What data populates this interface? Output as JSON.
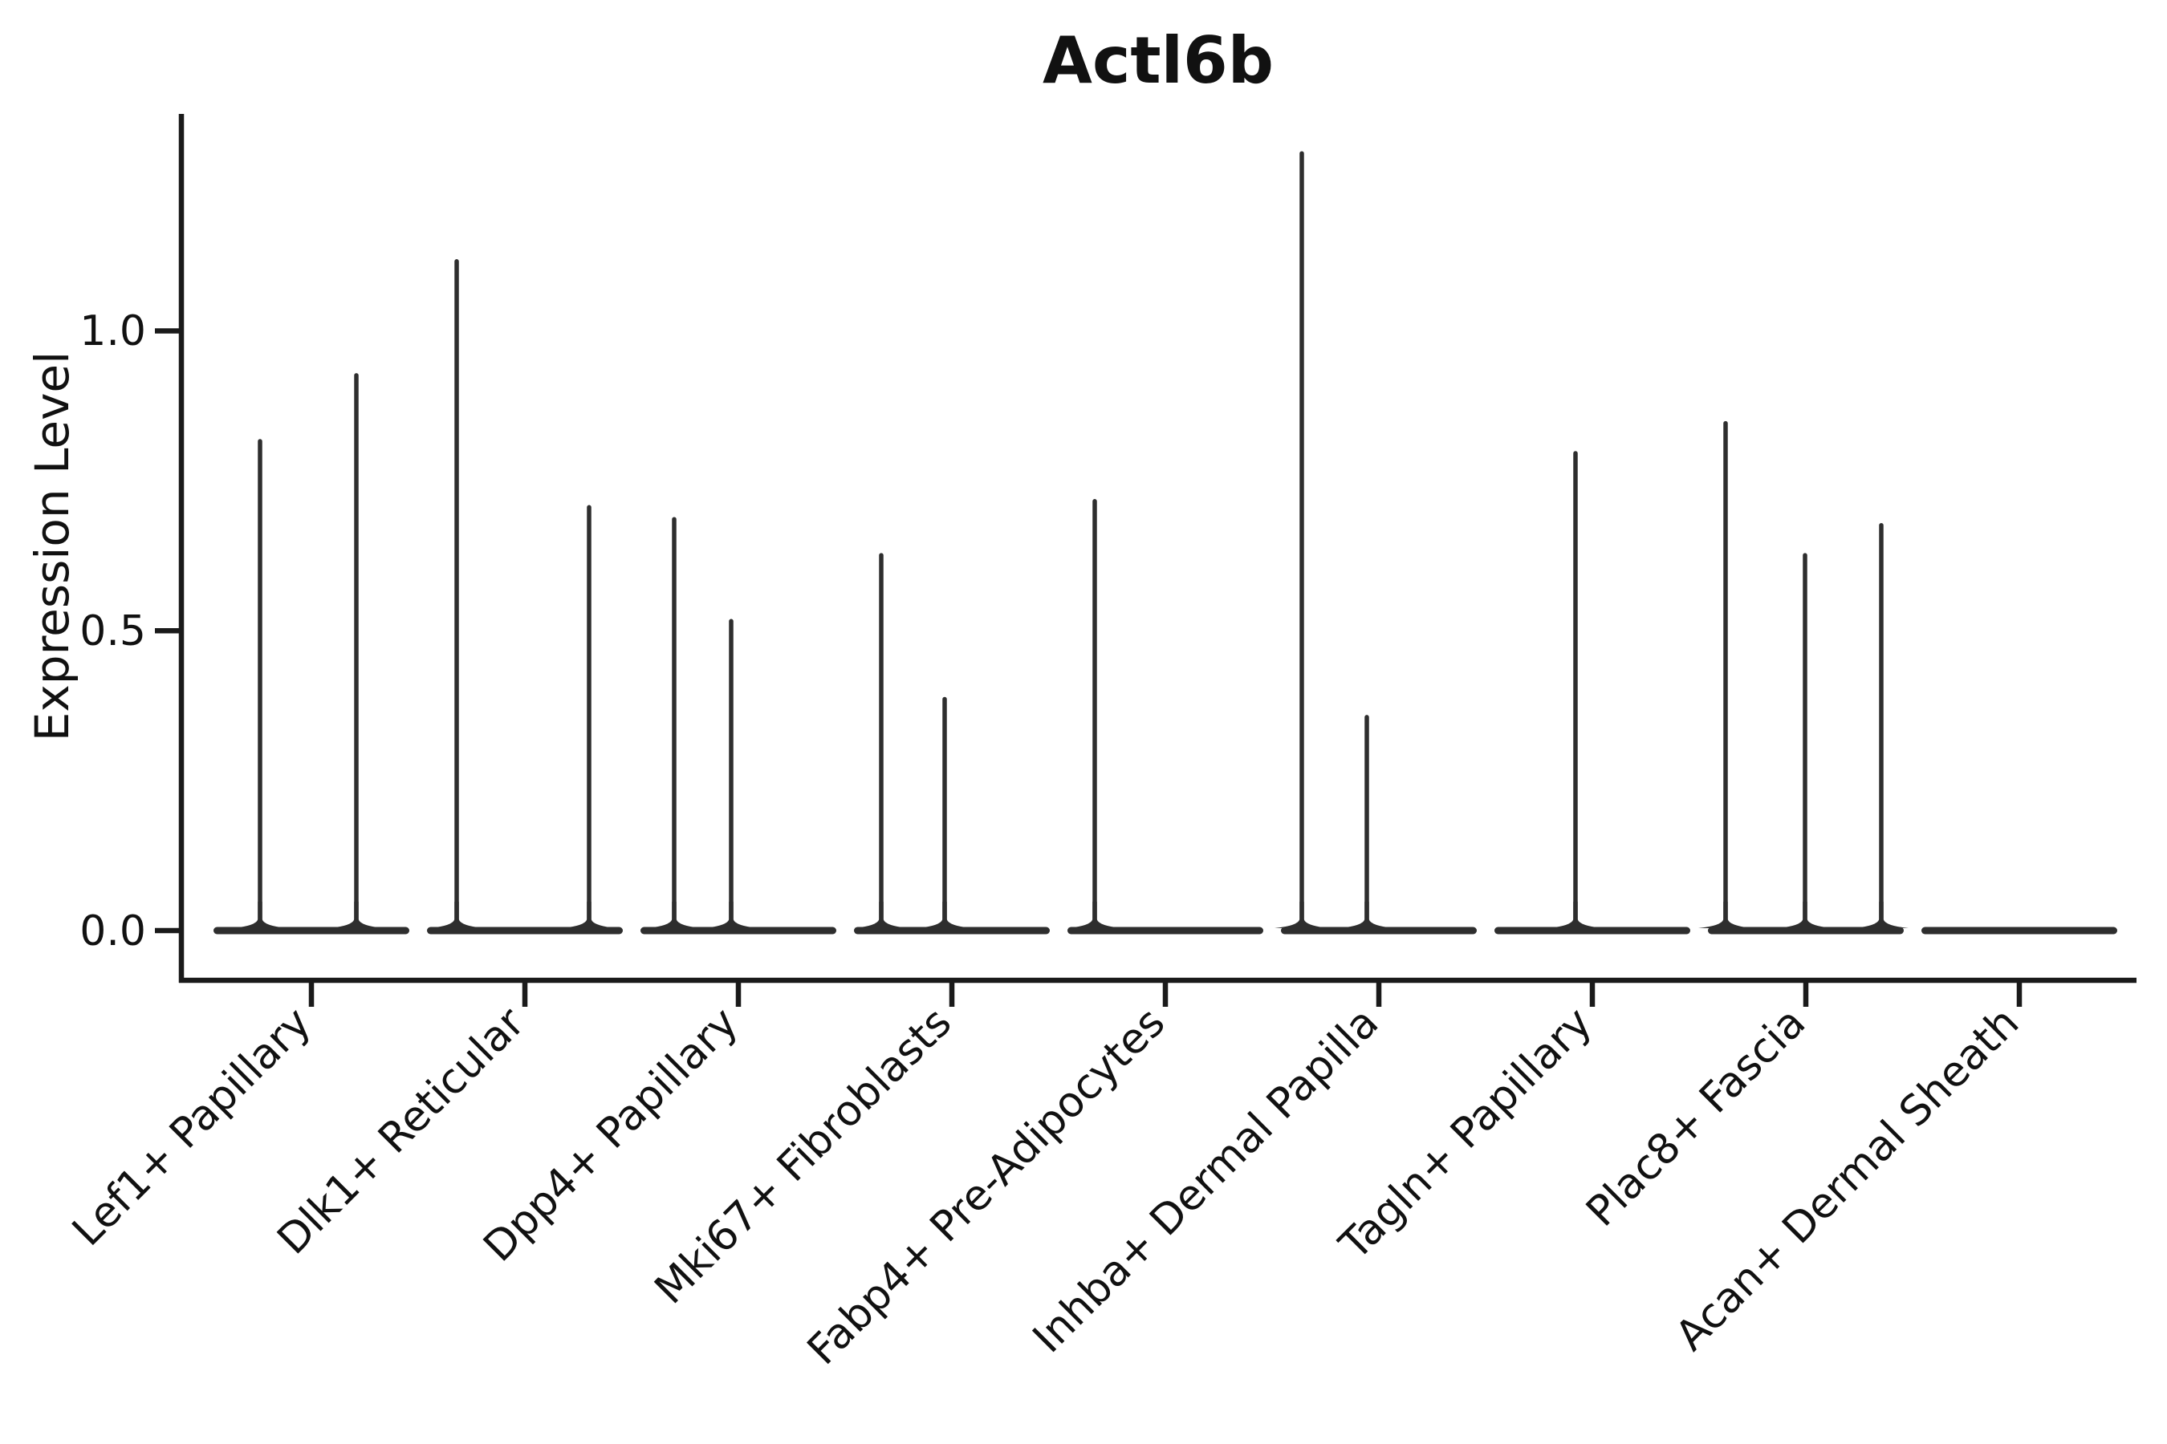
{
  "figure": {
    "background": "#ffffff",
    "axis_color": "#1a1a1a",
    "violin_color": "#2e2e2e"
  },
  "chart_data": {
    "type": "violin",
    "title": "Actl6b",
    "ylabel": "Expression Level",
    "xlabel": "",
    "yticks": [
      0.0,
      0.5,
      1.0
    ],
    "ytick_labels": [
      "0.0",
      "0.5",
      "1.0"
    ],
    "ylim": [
      -0.08,
      1.37
    ],
    "grid": false,
    "legend": false,
    "categories": [
      "Lef1+ Papillary",
      "Dlk1+ Reticular",
      "Dpp4+ Papillary",
      "Mki67+ Fibroblasts",
      "Fabp4+ Pre-Adipocytes",
      "Inhba+ Dermal Papilla",
      "Tagln+ Papillary",
      "Plac8+ Fascia",
      "Acan+ Dermal Sheath"
    ],
    "violins": [
      {
        "category": "Lef1+ Papillary",
        "base_value": 0.0,
        "spikes": [
          {
            "dx": -64,
            "value": 0.82
          },
          {
            "dx": 56,
            "value": 0.93
          }
        ]
      },
      {
        "category": "Dlk1+ Reticular",
        "base_value": 0.0,
        "spikes": [
          {
            "dx": -85,
            "value": 1.12
          },
          {
            "dx": 80,
            "value": 0.71
          }
        ]
      },
      {
        "category": "Dpp4+ Papillary",
        "base_value": 0.0,
        "spikes": [
          {
            "dx": -80,
            "value": 0.69
          },
          {
            "dx": -9,
            "value": 0.52
          }
        ]
      },
      {
        "category": "Mki67+ Fibroblasts",
        "base_value": 0.0,
        "spikes": [
          {
            "dx": -88,
            "value": 0.63
          },
          {
            "dx": -9,
            "value": 0.39
          }
        ]
      },
      {
        "category": "Fabp4+ Pre-Adipocytes",
        "base_value": 0.0,
        "spikes": [
          {
            "dx": -88,
            "value": 0.72
          }
        ]
      },
      {
        "category": "Inhba+ Dermal Papilla",
        "base_value": 0.0,
        "spikes": [
          {
            "dx": -96,
            "value": 1.3
          },
          {
            "dx": -15,
            "value": 0.36
          }
        ]
      },
      {
        "category": "Tagln+ Papillary",
        "base_value": 0.0,
        "spikes": [
          {
            "dx": -21,
            "value": 0.8
          }
        ]
      },
      {
        "category": "Plac8+ Fascia",
        "base_value": 0.0,
        "spikes": [
          {
            "dx": -100,
            "value": 0.85
          },
          {
            "dx": -1,
            "value": 0.63
          },
          {
            "dx": 94,
            "value": 0.68
          }
        ]
      },
      {
        "category": "Acan+ Dermal Sheath",
        "base_value": 0.0,
        "spikes": []
      }
    ]
  }
}
